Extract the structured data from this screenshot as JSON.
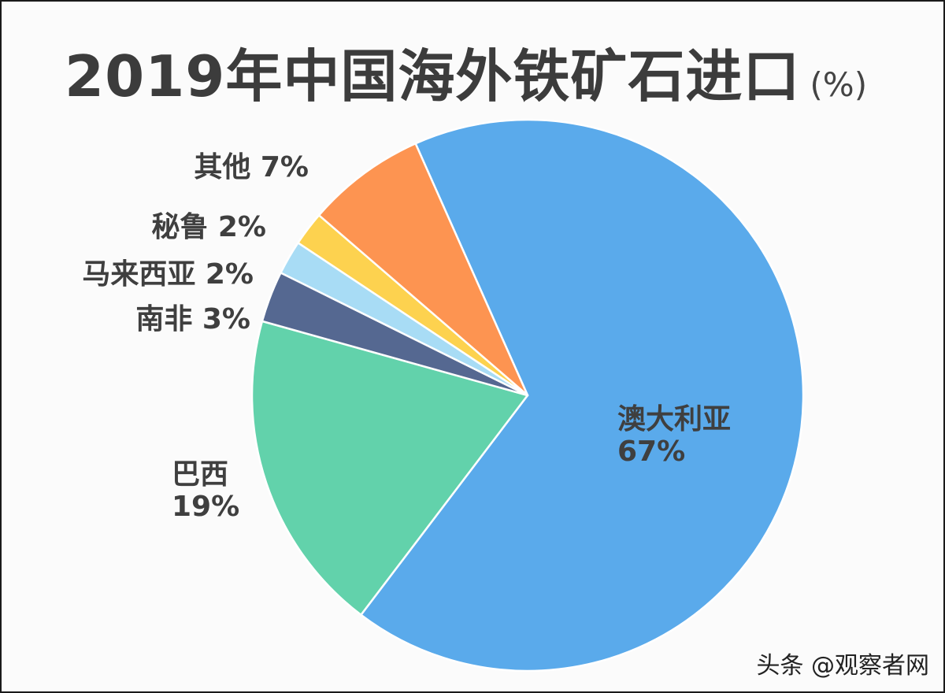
{
  "chart_data": {
    "type": "pie",
    "title": "2019年中国海外铁矿石进口",
    "unit": "(%)",
    "slices": [
      {
        "name": "澳大利亚",
        "value": 67,
        "value_label": "67%",
        "color": "#5aaaeb"
      },
      {
        "name": "巴西",
        "value": 19,
        "value_label": "19%",
        "color": "#62d2ab"
      },
      {
        "name": "南非",
        "value": 3,
        "value_label": "3%",
        "color": "#556891"
      },
      {
        "name": "马来西亚",
        "value": 2,
        "value_label": "2%",
        "color": "#a8dcf5"
      },
      {
        "name": "秘鲁",
        "value": 2,
        "value_label": "2%",
        "color": "#fdd24f"
      },
      {
        "name": "其他",
        "value": 7,
        "value_label": "7%",
        "color": "#fd9451"
      }
    ]
  },
  "watermark": "头条 @观察者网"
}
